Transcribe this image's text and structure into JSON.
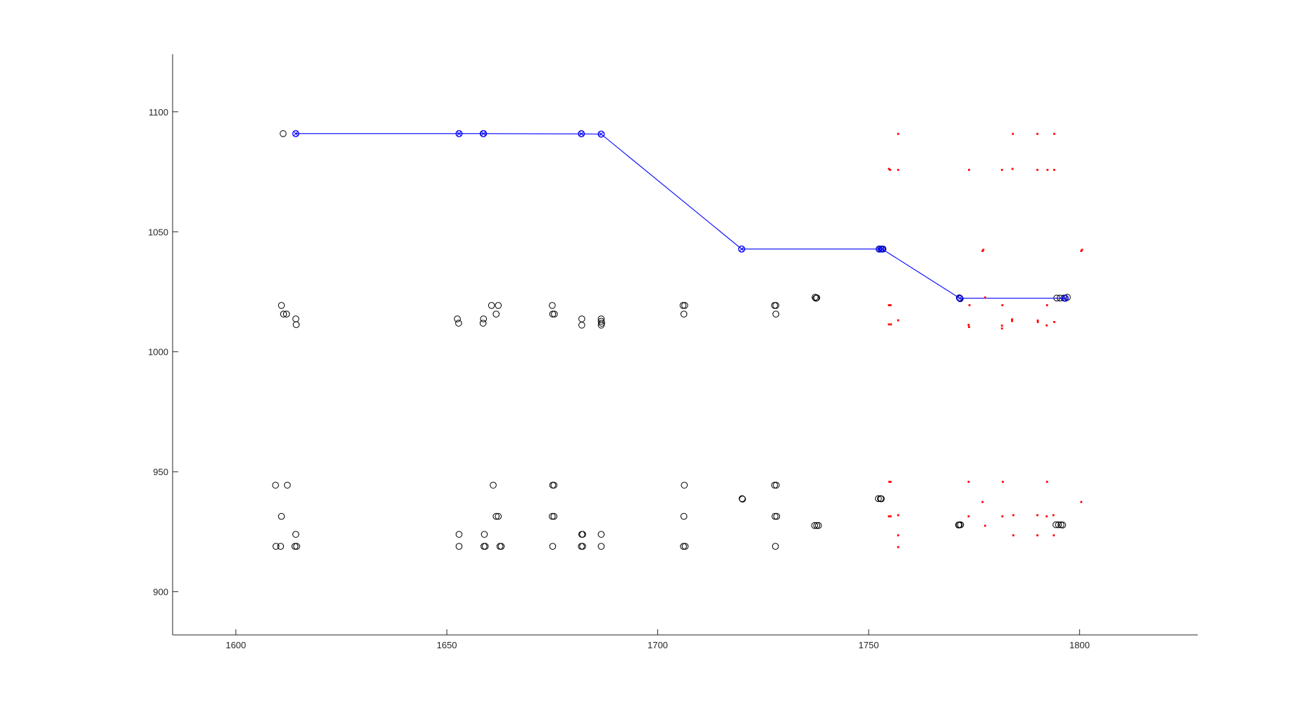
{
  "chart_data": {
    "type": "scatter",
    "title": "",
    "xlabel": "",
    "ylabel": "",
    "xlim": [
      1585,
      1828
    ],
    "ylim": [
      882,
      1124
    ],
    "grid": false,
    "legend": "none",
    "x_ticks": [
      1600,
      1650,
      1700,
      1750,
      1800
    ],
    "y_ticks": [
      900,
      950,
      1000,
      1050,
      1100
    ],
    "x_tick_labels": [
      "1600",
      "1650",
      "1700",
      "1750",
      "1800"
    ],
    "y_tick_labels": [
      "900",
      "950",
      "1000",
      "1050",
      "1100"
    ],
    "colors": {
      "axis": "#262626",
      "black_markers": "#000000",
      "blue": "#0000ff",
      "red": "#ff0000"
    },
    "series": [
      {
        "kind": "black-circles",
        "points": [
          [
            1611.2,
            1090.9
          ],
          [
            1610.8,
            1019.3
          ],
          [
            1611.3,
            1015.7
          ],
          [
            1612.0,
            1015.7
          ],
          [
            1614.2,
            1013.7
          ],
          [
            1614.3,
            1011.3
          ],
          [
            1609.4,
            944.4
          ],
          [
            1612.2,
            944.4
          ],
          [
            1610.8,
            931.4
          ],
          [
            1614.2,
            923.9
          ],
          [
            1614.4,
            918.9
          ],
          [
            1614.0,
            918.9
          ],
          [
            1609.5,
            918.9
          ],
          [
            1610.6,
            918.9
          ],
          [
            1652.5,
            1013.7
          ],
          [
            1652.8,
            1011.9
          ],
          [
            1658.7,
            1013.7
          ],
          [
            1658.6,
            1011.9
          ],
          [
            1660.6,
            1019.3
          ],
          [
            1662.2,
            1019.3
          ],
          [
            1661.7,
            1015.7
          ],
          [
            1675.0,
            1019.3
          ],
          [
            1675.1,
            1015.7
          ],
          [
            1675.5,
            1015.7
          ],
          [
            1682.0,
            1013.7
          ],
          [
            1682.0,
            1011.1
          ],
          [
            1686.6,
            1013.7
          ],
          [
            1686.6,
            1012.7
          ],
          [
            1686.6,
            1011.1
          ],
          [
            1686.7,
            1011.9
          ],
          [
            1706.0,
            1019.3
          ],
          [
            1706.4,
            1019.3
          ],
          [
            1706.2,
            1015.7
          ],
          [
            1727.7,
            1019.3
          ],
          [
            1728.0,
            1019.3
          ],
          [
            1728.0,
            1015.7
          ],
          [
            1737.3,
            1022.7
          ],
          [
            1737.5,
            1022.3
          ],
          [
            1737.7,
            1022.5
          ],
          [
            1652.9,
            923.9
          ],
          [
            1652.9,
            918.9
          ],
          [
            1658.9,
            923.9
          ],
          [
            1658.8,
            918.9
          ],
          [
            1659.1,
            918.9
          ],
          [
            1661.0,
            944.4
          ],
          [
            1661.7,
            931.4
          ],
          [
            1662.2,
            931.4
          ],
          [
            1662.6,
            918.9
          ],
          [
            1662.9,
            918.9
          ],
          [
            1675.1,
            944.4
          ],
          [
            1675.4,
            944.4
          ],
          [
            1675.0,
            931.4
          ],
          [
            1675.4,
            931.4
          ],
          [
            1675.1,
            918.9
          ],
          [
            1682.0,
            923.9
          ],
          [
            1682.2,
            923.9
          ],
          [
            1681.9,
            918.9
          ],
          [
            1682.2,
            918.9
          ],
          [
            1686.6,
            923.9
          ],
          [
            1686.6,
            918.9
          ],
          [
            1706.3,
            944.4
          ],
          [
            1706.2,
            931.4
          ],
          [
            1706.1,
            918.9
          ],
          [
            1706.5,
            918.9
          ],
          [
            1720.0,
            938.8
          ],
          [
            1720.1,
            938.6
          ],
          [
            1727.7,
            944.4
          ],
          [
            1728.1,
            944.4
          ],
          [
            1727.8,
            931.4
          ],
          [
            1728.2,
            931.4
          ],
          [
            1727.9,
            918.9
          ],
          [
            1737.2,
            927.6
          ],
          [
            1737.7,
            927.6
          ],
          [
            1738.1,
            927.6
          ],
          [
            1752.3,
            938.8
          ],
          [
            1752.8,
            938.8
          ],
          [
            1753.0,
            938.7
          ],
          [
            1771.5,
            927.9
          ],
          [
            1771.8,
            927.9
          ],
          [
            1771.3,
            927.8
          ],
          [
            1794.4,
            927.9
          ],
          [
            1795.0,
            927.9
          ],
          [
            1795.6,
            927.9
          ],
          [
            1796.0,
            927.8
          ],
          [
            1794.6,
            1022.4
          ],
          [
            1795.4,
            1022.4
          ],
          [
            1796.3,
            1022.4
          ],
          [
            1652.9,
            1090.9
          ],
          [
            1658.6,
            1090.9
          ],
          [
            1681.9,
            1090.9
          ],
          [
            1686.6,
            1090.7
          ],
          [
            1719.9,
            1042.8
          ],
          [
            1752.5,
            1042.8
          ],
          [
            1752.9,
            1042.8
          ],
          [
            1753.4,
            1042.8
          ],
          [
            1771.5,
            1022.5
          ],
          [
            1771.7,
            1022.1
          ],
          [
            1797.1,
            1022.7
          ]
        ]
      },
      {
        "kind": "blue-line-with-markers",
        "points": [
          [
            1614.2,
            1090.9
          ],
          [
            1652.9,
            1090.9
          ],
          [
            1658.7,
            1090.9
          ],
          [
            1681.9,
            1090.8
          ],
          [
            1686.6,
            1090.7
          ],
          [
            1719.9,
            1042.8
          ],
          [
            1752.5,
            1042.8
          ],
          [
            1753.2,
            1042.8
          ],
          [
            1771.6,
            1022.3
          ],
          [
            1796.6,
            1022.3
          ]
        ]
      },
      {
        "kind": "red-dots",
        "points": [
          [
            1757.0,
            1090.8
          ],
          [
            1784.2,
            1090.8
          ],
          [
            1790.0,
            1090.8
          ],
          [
            1794.0,
            1090.8
          ],
          [
            1754.8,
            1076.2
          ],
          [
            1755.1,
            1075.8
          ],
          [
            1757.0,
            1075.8
          ],
          [
            1773.8,
            1075.8
          ],
          [
            1781.6,
            1075.8
          ],
          [
            1784.1,
            1076.2
          ],
          [
            1790.0,
            1075.8
          ],
          [
            1792.4,
            1075.8
          ],
          [
            1794.0,
            1075.8
          ],
          [
            1777.0,
            1042.0
          ],
          [
            1777.2,
            1042.5
          ],
          [
            1800.4,
            1042.0
          ],
          [
            1800.6,
            1042.5
          ],
          [
            1777.6,
            1022.6
          ],
          [
            1754.8,
            1019.4
          ],
          [
            1755.2,
            1019.4
          ],
          [
            1773.9,
            1019.4
          ],
          [
            1781.7,
            1019.4
          ],
          [
            1792.3,
            1019.4
          ],
          [
            1757.0,
            1013.1
          ],
          [
            1784.0,
            1013.5
          ],
          [
            1784.0,
            1012.8
          ],
          [
            1790.1,
            1013.0
          ],
          [
            1790.1,
            1012.4
          ],
          [
            1794.0,
            1012.4
          ],
          [
            1754.8,
            1011.4
          ],
          [
            1755.3,
            1011.4
          ],
          [
            1773.7,
            1011.2
          ],
          [
            1773.8,
            1010.3
          ],
          [
            1781.6,
            1010.9
          ],
          [
            1781.6,
            1009.7
          ],
          [
            1792.2,
            1011.0
          ],
          [
            1754.9,
            945.8
          ],
          [
            1755.2,
            945.8
          ],
          [
            1773.7,
            945.8
          ],
          [
            1781.8,
            945.8
          ],
          [
            1792.3,
            945.8
          ],
          [
            1777.0,
            937.4
          ],
          [
            1800.4,
            937.4
          ],
          [
            1754.8,
            931.4
          ],
          [
            1755.2,
            931.4
          ],
          [
            1757.0,
            931.9
          ],
          [
            1773.7,
            931.4
          ],
          [
            1781.7,
            931.4
          ],
          [
            1784.3,
            931.9
          ],
          [
            1790.0,
            931.9
          ],
          [
            1792.2,
            931.4
          ],
          [
            1793.8,
            931.9
          ],
          [
            1777.6,
            927.5
          ],
          [
            1757.0,
            923.5
          ],
          [
            1784.3,
            923.5
          ],
          [
            1790.0,
            923.5
          ],
          [
            1793.9,
            923.5
          ],
          [
            1757.0,
            918.6
          ]
        ]
      }
    ]
  }
}
